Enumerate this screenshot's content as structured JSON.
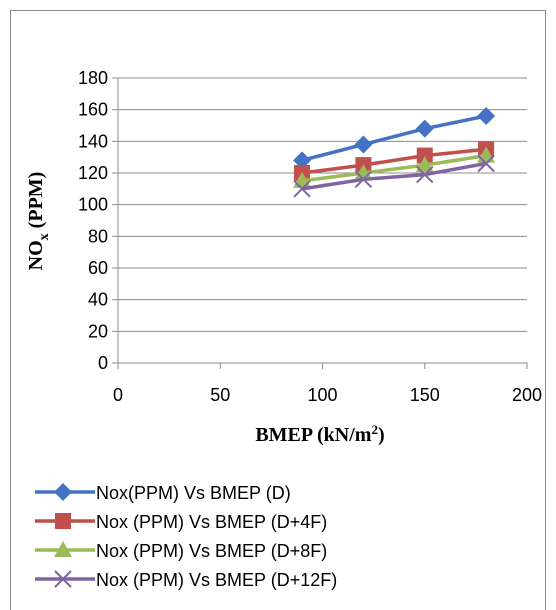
{
  "chart_data": {
    "type": "line",
    "title": "",
    "xlabel": {
      "main": "BMEP (kN/m",
      "sup": "2",
      "end": ")"
    },
    "ylabel": {
      "main": "NO",
      "sub": "x",
      "end": " (PPM)"
    },
    "xlim": [
      0,
      200
    ],
    "ylim": [
      0,
      180
    ],
    "xticks": [
      0,
      50,
      100,
      150,
      200
    ],
    "yticks": [
      0,
      20,
      40,
      60,
      80,
      100,
      120,
      140,
      160,
      180
    ],
    "grid": "horizontal",
    "legend_position": "bottom",
    "series": [
      {
        "name": "Nox(PPM) Vs BMEP (D)",
        "marker": "diamond",
        "color": "#4472C4",
        "x": [
          90,
          120,
          150,
          180
        ],
        "y": [
          128,
          138,
          148,
          156
        ]
      },
      {
        "name": "Nox (PPM) Vs BMEP (D+4F)",
        "marker": "square",
        "color": "#C0504D",
        "x": [
          90,
          120,
          150,
          180
        ],
        "y": [
          120,
          125,
          131,
          135
        ]
      },
      {
        "name": "Nox (PPM) Vs BMEP (D+8F)",
        "marker": "triangle",
        "color": "#9BBB59",
        "x": [
          90,
          120,
          150,
          180
        ],
        "y": [
          115,
          120,
          125,
          131
        ]
      },
      {
        "name": "Nox (PPM) Vs BMEP (D+12F)",
        "marker": "x",
        "color": "#8064A2",
        "x": [
          90,
          120,
          150,
          180
        ],
        "y": [
          110,
          116,
          119,
          126
        ]
      }
    ]
  }
}
